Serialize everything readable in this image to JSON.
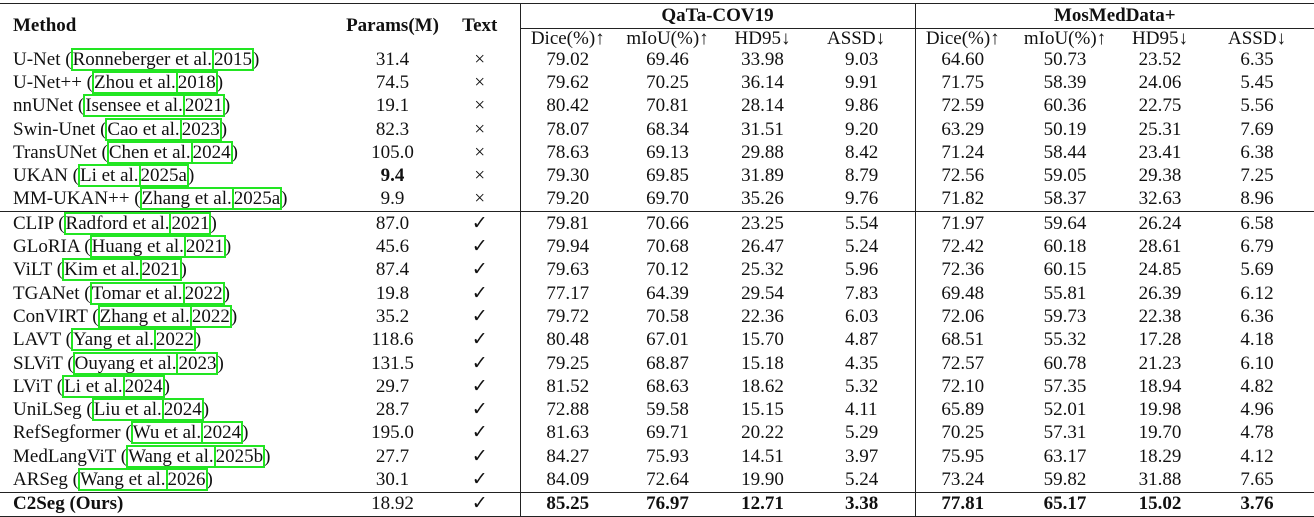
{
  "headers": {
    "method": "Method",
    "params": "Params(M)",
    "text": "Text",
    "dataset1": "QaTa-COV19",
    "dataset2": "MosMedData+",
    "metrics": [
      "Dice(%)↑",
      "mIoU(%)↑",
      "HD95↓",
      "ASSD↓"
    ]
  },
  "citation_box_color": "#22e522",
  "rows": [
    {
      "method": "U-Net",
      "authors": "Ronneberger et al.",
      "year": "2015",
      "params": "31.4",
      "text": "×",
      "qata": [
        "79.02",
        "69.46",
        "33.98",
        "9.03"
      ],
      "mos": [
        "64.60",
        "50.73",
        "23.52",
        "6.35"
      ]
    },
    {
      "method": "U-Net++",
      "authors": "Zhou et al.",
      "year": "2018",
      "params": "74.5",
      "text": "×",
      "qata": [
        "79.62",
        "70.25",
        "36.14",
        "9.91"
      ],
      "mos": [
        "71.75",
        "58.39",
        "24.06",
        "5.45"
      ]
    },
    {
      "method": "nnUNet",
      "authors": "Isensee et al.",
      "year": "2021",
      "params": "19.1",
      "text": "×",
      "qata": [
        "80.42",
        "70.81",
        "28.14",
        "9.86"
      ],
      "mos": [
        "72.59",
        "60.36",
        "22.75",
        "5.56"
      ]
    },
    {
      "method": "Swin-Unet",
      "authors": "Cao et al.",
      "year": "2023",
      "params": "82.3",
      "text": "×",
      "qata": [
        "78.07",
        "68.34",
        "31.51",
        "9.20"
      ],
      "mos": [
        "63.29",
        "50.19",
        "25.31",
        "7.69"
      ]
    },
    {
      "method": "TransUNet",
      "authors": "Chen et al.",
      "year": "2024",
      "params": "105.0",
      "text": "×",
      "qata": [
        "78.63",
        "69.13",
        "29.88",
        "8.42"
      ],
      "mos": [
        "71.24",
        "58.44",
        "23.41",
        "6.38"
      ]
    },
    {
      "method": "UKAN",
      "authors": "Li et al.",
      "year": "2025a",
      "params": "9.4",
      "params_bold": true,
      "text": "×",
      "qata": [
        "79.30",
        "69.85",
        "31.89",
        "8.79"
      ],
      "mos": [
        "72.56",
        "59.05",
        "29.38",
        "7.25"
      ]
    },
    {
      "method": "MM-UKAN++",
      "authors": "Zhang et al.",
      "year": "2025a",
      "params": "9.9",
      "text": "×",
      "qata": [
        "79.20",
        "69.70",
        "35.26",
        "9.76"
      ],
      "mos": [
        "71.82",
        "58.37",
        "32.63",
        "8.96"
      ]
    },
    {
      "method": "CLIP",
      "authors": "Radford et al.",
      "year": "2021",
      "params": "87.0",
      "text": "✓",
      "sep": true,
      "qata": [
        "79.81",
        "70.66",
        "23.25",
        "5.54"
      ],
      "mos": [
        "71.97",
        "59.64",
        "26.24",
        "6.58"
      ]
    },
    {
      "method": "GLoRIA",
      "authors": "Huang et al.",
      "year": "2021",
      "params": "45.6",
      "text": "✓",
      "qata": [
        "79.94",
        "70.68",
        "26.47",
        "5.24"
      ],
      "mos": [
        "72.42",
        "60.18",
        "28.61",
        "6.79"
      ]
    },
    {
      "method": "ViLT",
      "authors": "Kim et al.",
      "year": "2021",
      "params": "87.4",
      "text": "✓",
      "qata": [
        "79.63",
        "70.12",
        "25.32",
        "5.96"
      ],
      "mos": [
        "72.36",
        "60.15",
        "24.85",
        "5.69"
      ]
    },
    {
      "method": "TGANet",
      "authors": "Tomar et al.",
      "year": "2022",
      "params": "19.8",
      "text": "✓",
      "qata": [
        "77.17",
        "64.39",
        "29.54",
        "7.83"
      ],
      "mos": [
        "69.48",
        "55.81",
        "26.39",
        "6.12"
      ]
    },
    {
      "method": "ConVIRT",
      "authors": "Zhang et al.",
      "year": "2022",
      "params": "35.2",
      "text": "✓",
      "qata": [
        "79.72",
        "70.58",
        "22.36",
        "6.03"
      ],
      "mos": [
        "72.06",
        "59.73",
        "22.38",
        "6.36"
      ]
    },
    {
      "method": "LAVT",
      "authors": "Yang et al.",
      "year": "2022",
      "params": "118.6",
      "text": "✓",
      "qata": [
        "80.48",
        "67.01",
        "15.70",
        "4.87"
      ],
      "mos": [
        "68.51",
        "55.32",
        "17.28",
        "4.18"
      ]
    },
    {
      "method": "SLViT",
      "authors": "Ouyang et al.",
      "year": "2023",
      "params": "131.5",
      "text": "✓",
      "qata": [
        "79.25",
        "68.87",
        "15.18",
        "4.35"
      ],
      "mos": [
        "72.57",
        "60.78",
        "21.23",
        "6.10"
      ]
    },
    {
      "method": "LViT",
      "authors": "Li et al.",
      "year": "2024",
      "params": "29.7",
      "text": "✓",
      "qata": [
        "81.52",
        "68.63",
        "18.62",
        "5.32"
      ],
      "mos": [
        "72.10",
        "57.35",
        "18.94",
        "4.82"
      ]
    },
    {
      "method": "UniLSeg",
      "authors": "Liu et al.",
      "year": "2024",
      "params": "28.7",
      "text": "✓",
      "qata": [
        "72.88",
        "59.58",
        "15.15",
        "4.11"
      ],
      "mos": [
        "65.89",
        "52.01",
        "19.98",
        "4.96"
      ]
    },
    {
      "method": "RefSegformer",
      "authors": "Wu et al.",
      "year": "2024",
      "params": "195.0",
      "text": "✓",
      "qata": [
        "81.63",
        "69.71",
        "20.22",
        "5.29"
      ],
      "mos": [
        "70.25",
        "57.31",
        "19.70",
        "4.78"
      ]
    },
    {
      "method": "MedLangViT",
      "authors": "Wang et al.",
      "year": "2025b",
      "params": "27.7",
      "text": "✓",
      "qata": [
        "84.27",
        "75.93",
        "14.51",
        "3.97"
      ],
      "mos": [
        "75.95",
        "63.17",
        "18.29",
        "4.12"
      ]
    },
    {
      "method": "ARSeg",
      "authors": "Wang et al.",
      "year": "2026",
      "params": "30.1",
      "text": "✓",
      "qata": [
        "84.09",
        "72.64",
        "19.90",
        "5.24"
      ],
      "mos": [
        "73.24",
        "59.82",
        "31.88",
        "7.65"
      ]
    },
    {
      "method": "C2Seg (Ours)",
      "params": "18.92",
      "text": "✓",
      "ours": true,
      "sep": true,
      "qata": [
        "85.25",
        "76.97",
        "12.71",
        "3.38"
      ],
      "mos": [
        "77.81",
        "65.17",
        "15.02",
        "3.76"
      ]
    }
  ]
}
